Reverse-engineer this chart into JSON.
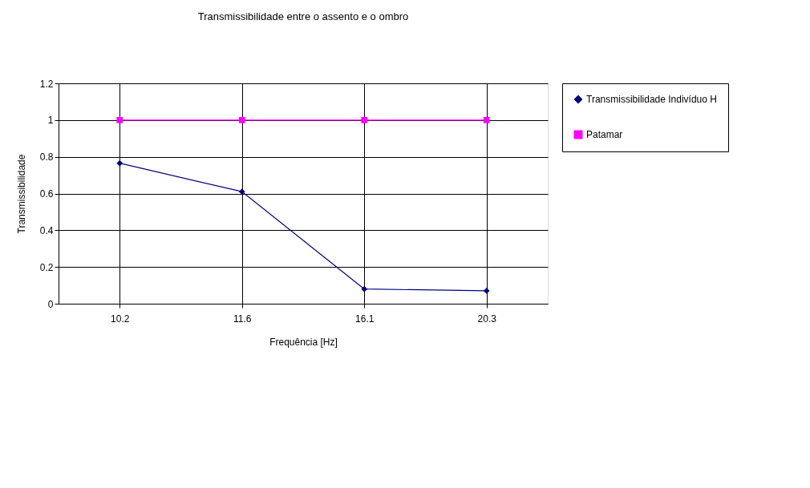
{
  "chart_data": {
    "type": "line",
    "title": "Transmissibilidade entre o assento e o ombro",
    "xlabel": "Frequência [Hz]",
    "ylabel": "Transmissibilidade",
    "categories": [
      "10.2",
      "11.6",
      "16.1",
      "20.3"
    ],
    "series": [
      {
        "name": "Transmissibilidade Indivíduo H",
        "color": "#000080",
        "marker": "diamond",
        "values": [
          0.765,
          0.61,
          0.08,
          0.07
        ]
      },
      {
        "name": "Patamar",
        "color": "#ff00ff",
        "marker": "square",
        "values": [
          1,
          1,
          1,
          1
        ]
      }
    ],
    "ylim": [
      0,
      1.2
    ],
    "yticks": [
      0,
      0.2,
      0.4,
      0.6,
      0.8,
      1,
      1.2
    ],
    "grid": true,
    "legend": "right",
    "line_style": "solid"
  }
}
